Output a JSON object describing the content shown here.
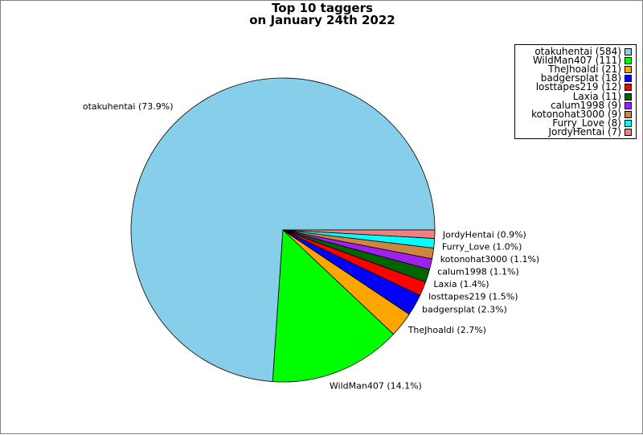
{
  "title_line1": "Top 10 taggers",
  "title_line2": "on January 24th 2022",
  "chart_data": {
    "type": "pie",
    "title": "Top 10 taggers on January 24th 2022",
    "legend_position": "top-right",
    "slices": [
      {
        "name": "otakuhentai",
        "value": 584,
        "percent": "73.9%",
        "color": "#87ceeb",
        "legend": "otakuhentai (584)",
        "label": "otakuhentai (73.9%)"
      },
      {
        "name": "WildMan407",
        "value": 111,
        "percent": "14.1%",
        "color": "#00ff00",
        "legend": "WildMan407 (111)",
        "label": "WildMan407 (14.1%)"
      },
      {
        "name": "TheJhoaldi",
        "value": 21,
        "percent": "2.7%",
        "color": "#ffa500",
        "legend": "TheJhoaldi (21)",
        "label": "TheJhoaldi (2.7%)"
      },
      {
        "name": "badgersplat",
        "value": 18,
        "percent": "2.3%",
        "color": "#0000ff",
        "legend": "badgersplat (18)",
        "label": "badgersplat (2.3%)"
      },
      {
        "name": "losttapes219",
        "value": 12,
        "percent": "1.5%",
        "color": "#ff0000",
        "legend": "losttapes219 (12)",
        "label": "losttapes219 (1.5%)"
      },
      {
        "name": "Laxia",
        "value": 11,
        "percent": "1.4%",
        "color": "#006400",
        "legend": "Laxia (11)",
        "label": "Laxia (1.4%)"
      },
      {
        "name": "calum1998",
        "value": 9,
        "percent": "1.1%",
        "color": "#a020f0",
        "legend": "calum1998 (9)",
        "label": "calum1998 (1.1%)"
      },
      {
        "name": "kotonohat3000",
        "value": 9,
        "percent": "1.1%",
        "color": "#cd853f",
        "legend": "kotonohat3000 (9)",
        "label": "kotonohat3000 (1.1%)"
      },
      {
        "name": "Furry_Love",
        "value": 8,
        "percent": "1.0%",
        "color": "#00ffff",
        "legend": "Furry_Love (8)",
        "label": "Furry_Love (1.0%)"
      },
      {
        "name": "JordyHentai",
        "value": 7,
        "percent": "0.9%",
        "color": "#f08080",
        "legend": "JordyHentai (7)",
        "label": "JordyHentai (0.9%)"
      }
    ]
  }
}
